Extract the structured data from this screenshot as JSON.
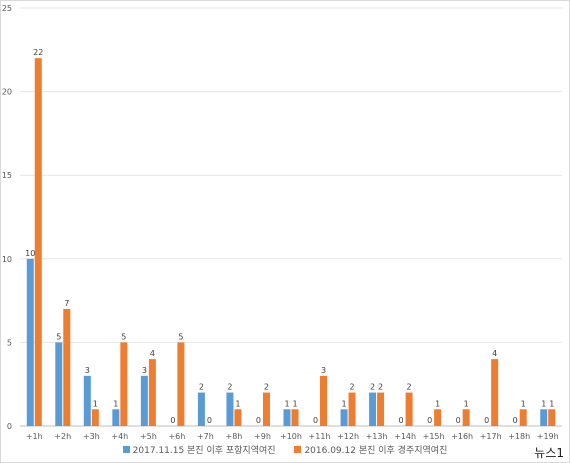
{
  "chart_data": {
    "type": "bar",
    "title": "",
    "xlabel": "",
    "ylabel": "",
    "ylim": [
      0,
      25
    ],
    "yticks": [
      0,
      5,
      10,
      15,
      20,
      25
    ],
    "grid": true,
    "legend_position": "bottom",
    "categories": [
      "+1h",
      "+2h",
      "+3h",
      "+4h",
      "+5h",
      "+6h",
      "+7h",
      "+8h",
      "+9h",
      "+10h",
      "+11h",
      "+12h",
      "+13h",
      "+14h",
      "+15h",
      "+16h",
      "+17h",
      "+18h",
      "+19h"
    ],
    "series": [
      {
        "name": "2017.11.15 본진 이후 포항지역여진",
        "color": "#5b9bd5",
        "values": [
          10,
          5,
          3,
          1,
          3,
          0,
          2,
          2,
          0,
          1,
          0,
          1,
          2,
          0,
          0,
          0,
          0,
          0,
          1
        ]
      },
      {
        "name": "2016.09.12 본진 이후 경주지역여진",
        "color": "#ed7d31",
        "values": [
          22,
          7,
          1,
          5,
          4,
          5,
          0,
          1,
          2,
          1,
          3,
          2,
          2,
          2,
          1,
          1,
          4,
          1,
          1
        ]
      }
    ]
  },
  "watermark": "뉴스1"
}
